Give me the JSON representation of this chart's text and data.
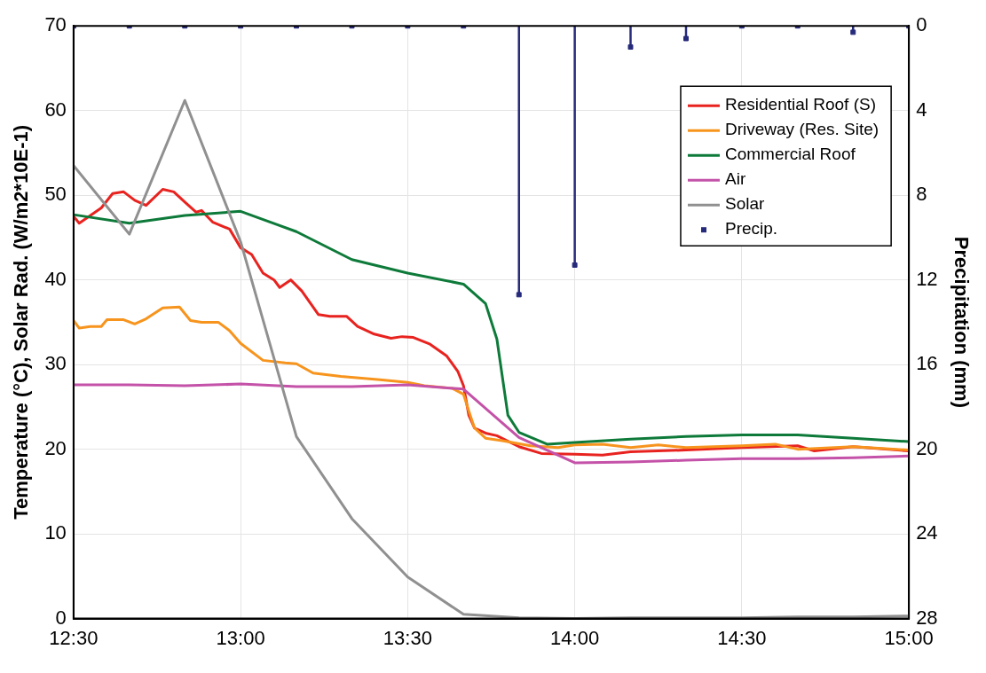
{
  "chart_data": {
    "type": "line",
    "ylabel": "Temperature (°C), Solar Rad. (W/m2*10E-1)",
    "y2label": "Precipitation (mm)",
    "xlim": [
      12.5,
      15
    ],
    "xticks": [
      {
        "value": 12.5,
        "label": "12:30"
      },
      {
        "value": 13,
        "label": "13:00"
      },
      {
        "value": 13.5,
        "label": "13:30"
      },
      {
        "value": 14,
        "label": "14:00"
      },
      {
        "value": 14.5,
        "label": "14:30"
      },
      {
        "value": 15,
        "label": "15:00"
      }
    ],
    "ylim": [
      0,
      70
    ],
    "yticks": [
      0,
      10,
      20,
      30,
      40,
      50,
      60,
      70
    ],
    "y2lim": [
      28,
      0
    ],
    "y2ticks": [
      0,
      4,
      8,
      12,
      16,
      20,
      24,
      28
    ],
    "grid": true,
    "legend": "top right",
    "marker": "none",
    "line_style": "solid",
    "series": [
      {
        "name": "Residential Roof (S)",
        "color": "#e8231f",
        "x": [
          12.5,
          12.517,
          12.583,
          12.617,
          12.65,
          12.683,
          12.717,
          12.767,
          12.8,
          12.833,
          12.867,
          12.883,
          12.917,
          12.967,
          13,
          13.033,
          13.067,
          13.1,
          13.117,
          13.15,
          13.183,
          13.233,
          13.267,
          13.317,
          13.35,
          13.4,
          13.45,
          13.483,
          13.517,
          13.567,
          13.617,
          13.65,
          13.667,
          13.683,
          13.7,
          13.733,
          13.767,
          13.833,
          13.9,
          14,
          14.083,
          14.167,
          14.333,
          14.5,
          14.667,
          14.717,
          14.833,
          15
        ],
        "values": [
          47.5,
          46.7,
          48.5,
          50.2,
          50.4,
          49.4,
          48.8,
          50.7,
          50.4,
          49.2,
          48,
          48.2,
          46.8,
          46,
          43.8,
          43,
          40.8,
          40,
          39.1,
          40,
          38.7,
          35.9,
          35.7,
          35.7,
          34.5,
          33.6,
          33.1,
          33.3,
          33.2,
          32.4,
          31,
          29.2,
          27.5,
          24,
          22.5,
          21.9,
          21.6,
          20.3,
          19.5,
          19.4,
          19.3,
          19.7,
          19.9,
          20.2,
          20.4,
          19.8,
          20.3,
          19.8
        ]
      },
      {
        "name": "Driveway (Res. Site)",
        "color": "#f7941d",
        "x": [
          12.5,
          12.517,
          12.55,
          12.583,
          12.6,
          12.65,
          12.683,
          12.717,
          12.767,
          12.817,
          12.85,
          12.883,
          12.933,
          12.967,
          13,
          13.067,
          13.133,
          13.167,
          13.217,
          13.3,
          13.417,
          13.5,
          13.55,
          13.633,
          13.667,
          13.683,
          13.7,
          13.733,
          13.783,
          13.867,
          13.95,
          14,
          14.083,
          14.167,
          14.25,
          14.333,
          14.5,
          14.6,
          14.667,
          14.833,
          15
        ],
        "values": [
          35.2,
          34.3,
          34.5,
          34.5,
          35.3,
          35.3,
          34.8,
          35.4,
          36.7,
          36.8,
          35.2,
          35,
          35,
          34,
          32.5,
          30.5,
          30.2,
          30.1,
          29,
          28.6,
          28.2,
          27.9,
          27.5,
          27.2,
          26.5,
          24.5,
          22.5,
          21.3,
          21,
          20.4,
          20.2,
          20.5,
          20.6,
          20.2,
          20.5,
          20.2,
          20.4,
          20.6,
          20,
          20.3,
          19.9
        ]
      },
      {
        "name": "Commercial Roof",
        "color": "#0e7a3a",
        "x": [
          12.5,
          12.667,
          12.833,
          13,
          13.167,
          13.333,
          13.5,
          13.667,
          13.733,
          13.767,
          13.8,
          13.833,
          13.917,
          14,
          14.167,
          14.333,
          14.5,
          14.667,
          14.833,
          15
        ],
        "values": [
          47.7,
          46.7,
          47.6,
          48.1,
          45.7,
          42.4,
          40.8,
          39.5,
          37.2,
          33,
          24,
          22,
          20.6,
          20.8,
          21.2,
          21.5,
          21.7,
          21.7,
          21.3,
          20.9
        ]
      },
      {
        "name": "Air",
        "color": "#c452a8",
        "x": [
          12.5,
          12.667,
          12.833,
          13,
          13.167,
          13.333,
          13.5,
          13.667,
          13.833,
          14,
          14.167,
          14.333,
          14.5,
          14.667,
          14.833,
          15
        ],
        "values": [
          27.6,
          27.6,
          27.5,
          27.7,
          27.4,
          27.4,
          27.6,
          27.1,
          21.4,
          18.4,
          18.5,
          18.7,
          18.9,
          18.9,
          19,
          19.2
        ]
      },
      {
        "name": "Solar",
        "color": "#909090",
        "x": [
          12.5,
          12.667,
          12.833,
          13,
          13.167,
          13.333,
          13.5,
          13.667,
          13.833,
          14,
          14.167,
          14.333,
          14.5,
          14.667,
          14.833,
          15
        ],
        "values": [
          53.5,
          45.4,
          61.2,
          44.5,
          21.5,
          11.8,
          4.9,
          0.5,
          0.1,
          0,
          0.1,
          0.1,
          0.1,
          0.2,
          0.2,
          0.3
        ]
      },
      {
        "name": "Precip.",
        "type": "lollipop",
        "axis": "y2",
        "marker": "square",
        "color": "#262a7a",
        "x": [
          12.5,
          12.667,
          12.833,
          13,
          13.167,
          13.333,
          13.5,
          13.667,
          13.833,
          14,
          14.167,
          14.333,
          14.5,
          14.667,
          14.833,
          15
        ],
        "values": [
          0,
          0,
          0,
          0,
          0,
          0,
          0,
          0,
          12.7,
          11.3,
          1,
          0.6,
          0,
          0,
          0.3,
          0
        ]
      }
    ]
  }
}
